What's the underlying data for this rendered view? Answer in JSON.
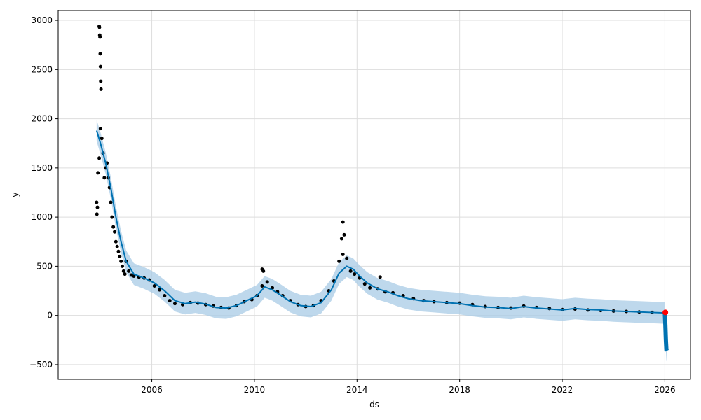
{
  "chart_data": {
    "type": "scatter",
    "xlabel": "ds",
    "ylabel": "y",
    "xlim": [
      2002.35,
      2027.0
    ],
    "ylim": [
      -650,
      3100
    ],
    "x_ticks": [
      2006,
      2010,
      2014,
      2018,
      2022,
      2026
    ],
    "y_ticks": [
      -500,
      0,
      500,
      1000,
      1500,
      2000,
      2500,
      3000
    ],
    "grid": true,
    "colors": {
      "observed": "#000000",
      "forecast": "#0072B2",
      "interval": "#a8cbe6",
      "last_point": "#ff0000",
      "grid": "#dddddd"
    },
    "series": [
      {
        "role": "observed",
        "x": [
          2003.85,
          2003.9,
          2003.95,
          2004.0,
          2004.05,
          2004.1,
          2004.15,
          2004.2,
          2004.25,
          2004.3,
          2004.35,
          2004.4,
          2004.45,
          2004.5,
          2004.55,
          2004.6,
          2004.65,
          2004.7,
          2004.75,
          2004.8,
          2004.85,
          2004.9,
          2004.95,
          2005.0,
          2005.1,
          2005.2,
          2005.3,
          2005.5,
          2005.7,
          2005.9,
          2006.1,
          2006.3,
          2006.5,
          2006.7,
          2006.9,
          2007.2,
          2007.5,
          2007.8,
          2008.1,
          2008.4,
          2008.7,
          2009.0,
          2009.3,
          2009.6,
          2009.9,
          2010.1,
          2010.3,
          2010.5,
          2010.7,
          2010.9,
          2011.1,
          2011.4,
          2011.7,
          2012.0,
          2012.3,
          2012.6,
          2012.9,
          2013.1,
          2013.3,
          2013.45,
          2013.6,
          2013.75,
          2013.9,
          2014.1,
          2014.3,
          2014.5,
          2014.8,
          2015.1,
          2015.4,
          2015.8,
          2016.2,
          2016.6,
          2017.0,
          2017.5,
          2018.0,
          2018.5,
          2019.0,
          2019.5,
          2020.0,
          2020.5,
          2021.0,
          2021.5,
          2022.0,
          2022.5,
          2023.0,
          2023.5,
          2024.0,
          2024.5,
          2025.0,
          2025.5,
          2026.0
        ],
        "values": [
          1150,
          1450,
          1600,
          1900,
          1800,
          1650,
          1400,
          1500,
          1550,
          1400,
          1300,
          1150,
          1000,
          900,
          850,
          750,
          700,
          650,
          600,
          550,
          500,
          450,
          420,
          550,
          450,
          410,
          400,
          390,
          380,
          360,
          300,
          260,
          200,
          150,
          120,
          110,
          130,
          125,
          110,
          95,
          80,
          75,
          100,
          140,
          160,
          200,
          300,
          340,
          280,
          240,
          200,
          150,
          110,
          90,
          100,
          150,
          250,
          350,
          550,
          620,
          580,
          450,
          420,
          380,
          320,
          280,
          270,
          240,
          230,
          200,
          170,
          150,
          140,
          130,
          125,
          110,
          90,
          80,
          75,
          95,
          80,
          70,
          60,
          65,
          55,
          50,
          45,
          40,
          35,
          30,
          25
        ]
      },
      {
        "role": "spikes",
        "x": [
          2003.95,
          2003.96,
          2003.97,
          2003.98,
          2003.99,
          2004.0,
          2004.01,
          2004.02,
          2003.86,
          2003.88,
          2013.45,
          2013.5,
          2013.4,
          2010.3,
          2010.35,
          2014.9
        ],
        "values": [
          2940,
          2930,
          2850,
          2830,
          2660,
          2530,
          2380,
          2300,
          1030,
          1100,
          950,
          820,
          780,
          470,
          450,
          390
        ]
      },
      {
        "role": "forecast",
        "x": [
          2003.85,
          2004.0,
          2004.2,
          2004.4,
          2004.6,
          2004.8,
          2005.0,
          2005.3,
          2005.7,
          2006.1,
          2006.5,
          2006.9,
          2007.3,
          2007.7,
          2008.1,
          2008.5,
          2008.9,
          2009.3,
          2009.7,
          2010.1,
          2010.4,
          2010.7,
          2011.0,
          2011.4,
          2011.8,
          2012.2,
          2012.6,
          2013.0,
          2013.3,
          2013.6,
          2013.85,
          2014.1,
          2014.4,
          2014.8,
          2015.2,
          2015.6,
          2016.0,
          2016.5,
          2017.0,
          2017.5,
          2018.0,
          2018.5,
          2019.0,
          2019.5,
          2020.0,
          2020.5,
          2021.0,
          2021.5,
          2022.0,
          2022.5,
          2023.0,
          2023.5,
          2024.0,
          2024.5,
          2025.0,
          2025.5,
          2026.0
        ],
        "values": [
          1880,
          1750,
          1550,
          1300,
          1000,
          750,
          550,
          420,
          380,
          330,
          250,
          150,
          120,
          135,
          115,
          80,
          75,
          100,
          150,
          200,
          290,
          260,
          210,
          140,
          100,
          90,
          130,
          260,
          430,
          500,
          470,
          400,
          330,
          270,
          240,
          200,
          170,
          150,
          140,
          130,
          120,
          100,
          85,
          80,
          70,
          90,
          75,
          65,
          55,
          70,
          60,
          55,
          45,
          40,
          35,
          30,
          25
        ]
      },
      {
        "role": "forecast_extension",
        "x": [
          2026.0,
          2026.02,
          2026.04,
          2026.06,
          2026.08
        ],
        "values": [
          25,
          -100,
          -250,
          -350,
          -360
        ]
      },
      {
        "role": "last_observed",
        "x": [
          2026.02
        ],
        "values": [
          30
        ]
      }
    ],
    "interval_halfwidth": 110,
    "extension_interval_halfwidth": 110
  }
}
